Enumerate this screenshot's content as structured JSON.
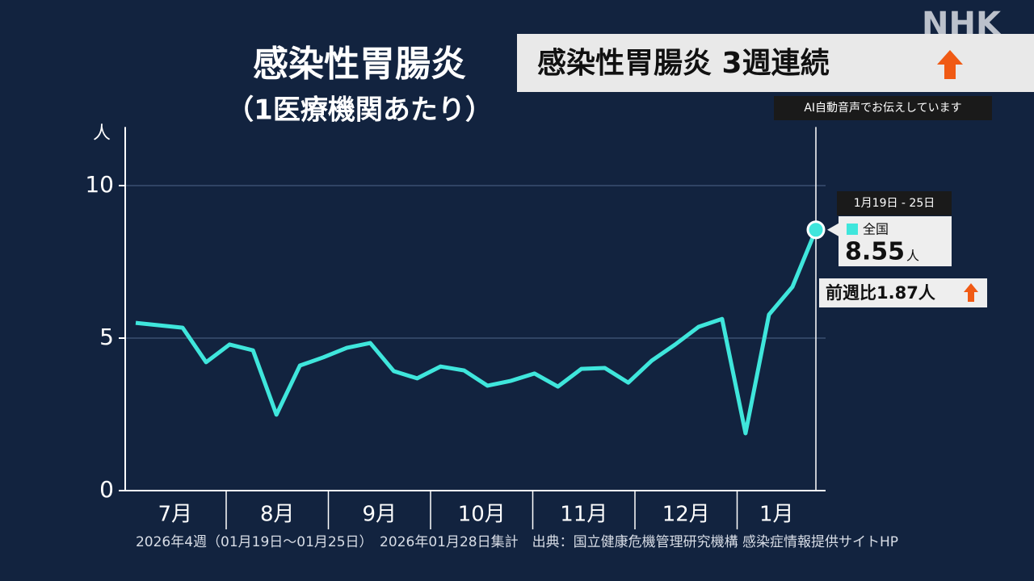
{
  "logo": "NHK",
  "banner": {
    "title": "感染性胃腸炎 3週連続",
    "caption": "AI自動音声でお伝えしています"
  },
  "chart_data": {
    "type": "line",
    "title": "感染性胃腸炎",
    "subtitle": "（1医療機関あたり）",
    "y_unit": "人",
    "months": [
      "7月",
      "8月",
      "9月",
      "10月",
      "11月",
      "12月",
      "1月"
    ],
    "series": [
      {
        "name": "全国",
        "color": "#3fe6dc",
        "values": [
          5.5,
          5.42,
          5.34,
          4.21,
          4.79,
          4.6,
          2.49,
          4.1,
          4.37,
          4.68,
          4.84,
          3.92,
          3.68,
          4.07,
          3.94,
          3.44,
          3.6,
          3.84,
          3.41,
          3.99,
          4.02,
          3.54,
          4.26,
          4.79,
          5.37,
          5.63,
          1.88,
          5.77,
          6.68,
          8.55
        ]
      }
    ],
    "ylim": [
      0,
      12
    ],
    "yticks": [
      0,
      5,
      10
    ],
    "grid": true,
    "callout": {
      "date": "1月19日 - 25日",
      "unit": "人",
      "change": "前週比1.87人"
    },
    "footer": "2026年4週（01月19日～01月25日）　2026年01月28日集計　出典：国立健康危機管理研究機構 感染症情報提供サイトHP"
  }
}
